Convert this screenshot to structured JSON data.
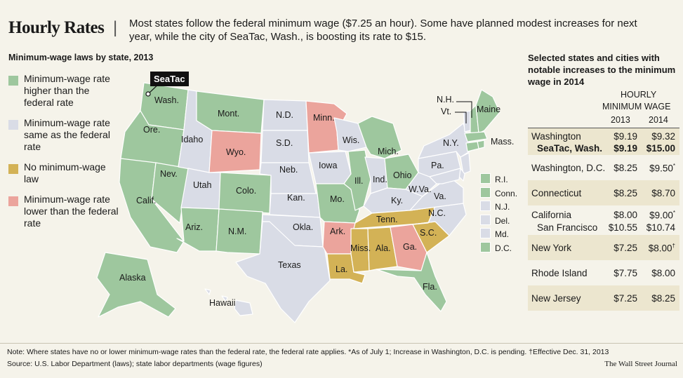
{
  "title": "Hourly Rates",
  "intro": "Most states follow the federal minimum wage ($7.25 an hour). Some have planned modest increases for next year, while the city of SeaTac, Wash., is boosting its rate to $15.",
  "map_subtitle": "Minimum-wage laws by state, 2013",
  "colors": {
    "higher": "#9ec79e",
    "same": "#d9dce6",
    "none": "#d3b256",
    "lower": "#eba49c",
    "bg": "#f5f3ea",
    "tan": "#ece6cf"
  },
  "legend": [
    {
      "key": "higher",
      "label": "Minimum-wage rate higher than the federal rate"
    },
    {
      "key": "same",
      "label": "Minimum-wage rate same as the federal rate"
    },
    {
      "key": "none",
      "label": "No minimum-wage law"
    },
    {
      "key": "lower",
      "label": "Minimum-wage rate lower than the federal rate"
    }
  ],
  "callout": "SeaTac",
  "state_labels": {
    "wash": "Wash.",
    "ore": "Ore.",
    "calif": "Calif.",
    "nev": "Nev.",
    "idaho": "Idaho",
    "mont": "Mont.",
    "wyo": "Wyo.",
    "utah": "Utah",
    "ariz": "Ariz.",
    "colo": "Colo.",
    "nm": "N.M.",
    "nd": "N.D.",
    "sd": "S.D.",
    "neb": "Neb.",
    "kan": "Kan.",
    "okla": "Okla.",
    "texas": "Texas",
    "minn": "Minn.",
    "iowa": "Iowa",
    "mo": "Mo.",
    "ark": "Ark.",
    "la": "La.",
    "wis": "Wis.",
    "ill": "Ill.",
    "mich": "Mich.",
    "ind": "Ind.",
    "ohio": "Ohio",
    "ky": "Ky.",
    "tenn": "Tenn.",
    "miss": "Miss.",
    "ala": "Ala.",
    "ga": "Ga.",
    "fla": "Fla.",
    "sc": "S.C.",
    "nc": "N.C.",
    "va": "Va.",
    "wva": "W.Va.",
    "pa": "Pa.",
    "ny": "N.Y.",
    "maine": "Maine",
    "nh": "N.H.",
    "vt": "Vt.",
    "mass": "Mass.",
    "alaska": "Alaska",
    "hawaii": "Hawaii"
  },
  "small_states": [
    {
      "key": "higher",
      "label": "R.I."
    },
    {
      "key": "higher",
      "label": "Conn."
    },
    {
      "key": "same",
      "label": "N.J."
    },
    {
      "key": "same",
      "label": "Del."
    },
    {
      "key": "same",
      "label": "Md."
    },
    {
      "key": "higher",
      "label": "D.C."
    }
  ],
  "panel": {
    "heading": "Selected states and cities with notable increases to the minimum wage in 2014",
    "col_title_1": "HOURLY",
    "col_title_2": "MINIMUM WAGE",
    "year_2013": "2013",
    "year_2014": "2014",
    "rows": [
      {
        "name": "Washington",
        "v2013": "$9.19",
        "v2014": "$9.32",
        "sub_name": "SeaTac, Wash.",
        "sub_2013": "$9.19",
        "sub_2014": "$15.00"
      },
      {
        "name": "Washington, D.C.",
        "v2013": "$8.25",
        "v2014": "$9.50",
        "mark": "*"
      },
      {
        "name": "Connecticut",
        "v2013": "$8.25",
        "v2014": "$8.70"
      },
      {
        "name": "California",
        "v2013": "$8.00",
        "v2014": "$9.00",
        "mark": "*",
        "sub_name": "San Francisco",
        "sub_2013": "$10.55",
        "sub_2014": "$10.74"
      },
      {
        "name": "New York",
        "v2013": "$7.25",
        "v2014": "$8.00",
        "mark": "†"
      },
      {
        "name": "Rhode Island",
        "v2013": "$7.75",
        "v2014": "$8.00"
      },
      {
        "name": "New Jersey",
        "v2013": "$7.25",
        "v2014": "$8.25"
      }
    ]
  },
  "note": "Note: Where states have no or lower minimum-wage rates than the federal rate, the federal rate applies. *As of July 1; Increase in Washington, D.C. is pending. †Effective Dec. 31, 2013",
  "source": "Source: U.S. Labor Department (laws); state labor departments (wage figures)",
  "credit": "The Wall Street Journal"
}
